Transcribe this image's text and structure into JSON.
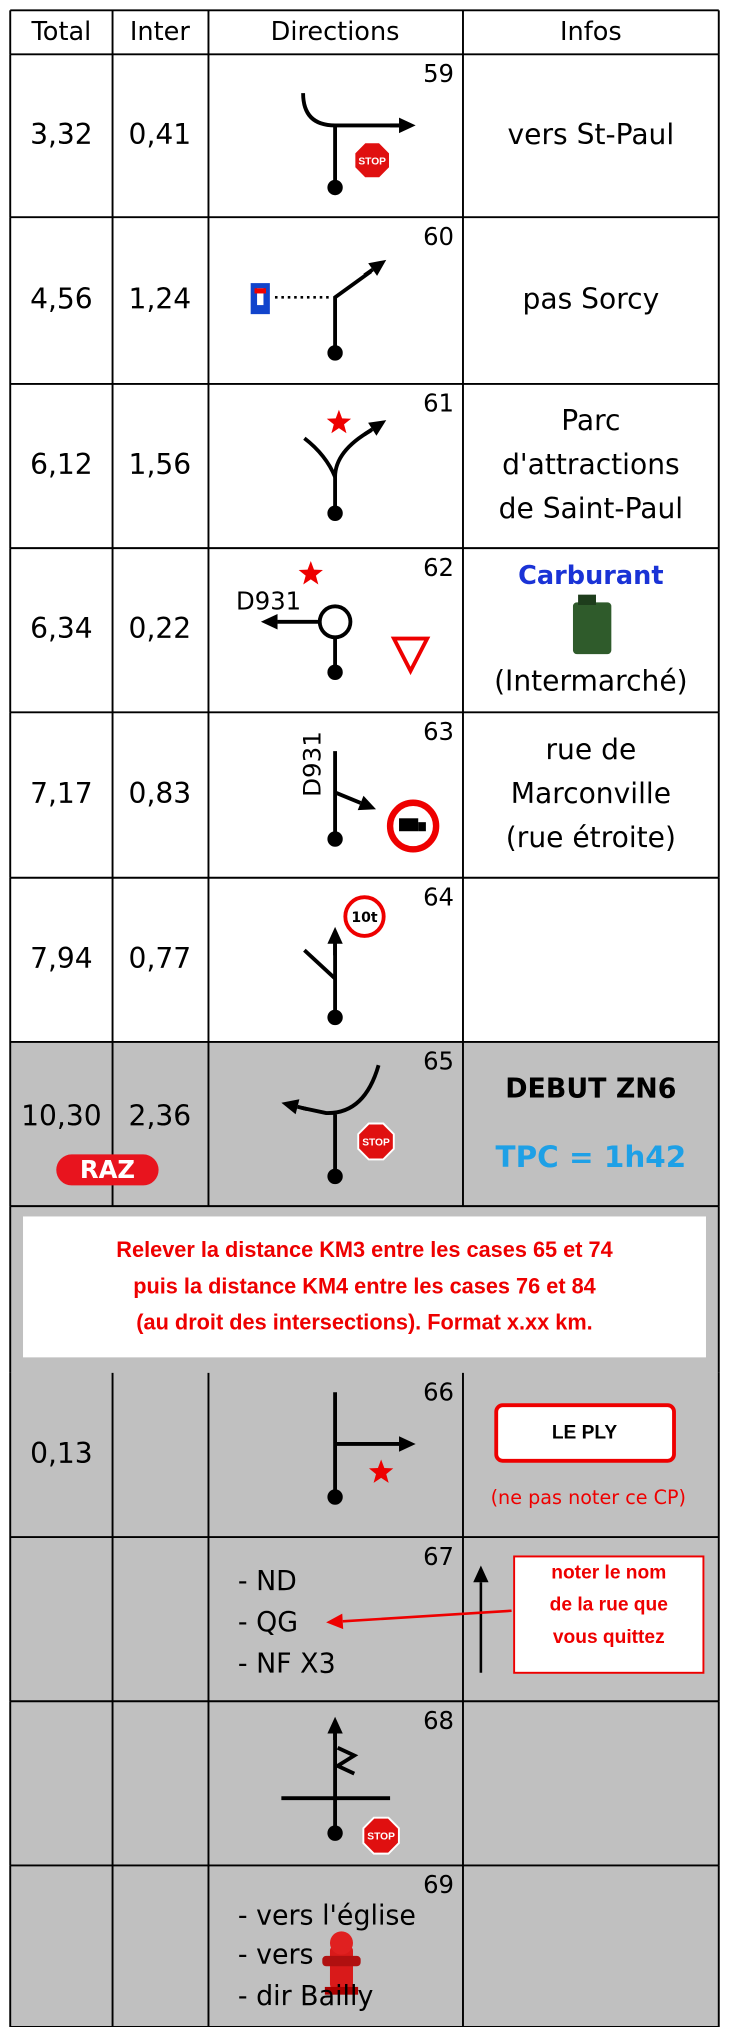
{
  "header": {
    "columns": [
      "Total",
      "Inter",
      "Directions",
      "Infos"
    ]
  },
  "stop_sign": "STOP",
  "rows": [
    {
      "number": "59",
      "total": "3,32",
      "inter": "0,41",
      "infos": [
        "vers St-Paul"
      ]
    },
    {
      "number": "60",
      "total": "4,56",
      "inter": "1,24",
      "infos": [
        "pas Sorcy"
      ]
    },
    {
      "number": "61",
      "total": "6,12",
      "inter": "1,56",
      "infos": [
        "Parc",
        "d'attractions",
        "de Saint-Paul"
      ]
    },
    {
      "number": "62",
      "total": "6,34",
      "inter": "0,22",
      "road": "D931",
      "infos": [
        "Carburant",
        "(Intermarché)"
      ]
    },
    {
      "number": "63",
      "total": "7,17",
      "inter": "0,83",
      "road": "D931",
      "infos": [
        "rue de",
        "Marconville",
        "(rue étroite)"
      ]
    },
    {
      "number": "64",
      "total": "7,94",
      "inter": "0,77",
      "sign": "10t",
      "infos": []
    },
    {
      "number": "65",
      "total": "10,30",
      "inter": "2,36",
      "badge": "RAZ",
      "infos": [
        "DEBUT ZN6",
        "TPC = 1h42"
      ]
    },
    {
      "number": "66",
      "total": "0,13",
      "infos": [
        "LE PLY",
        "(ne pas noter ce CP)"
      ]
    },
    {
      "number": "67",
      "directions": [
        "- ND",
        "- QG",
        "- NF X3"
      ],
      "infos": [
        "noter le nom",
        "de la rue que",
        "vous quittez"
      ]
    },
    {
      "number": "68"
    },
    {
      "number": "69",
      "directions": [
        "- vers l'église",
        "- vers",
        "- dir Bailly"
      ]
    }
  ],
  "banner": [
    "Relever la distance KM3 entre les cases 65 et 74",
    "puis la distance KM4 entre les cases 76 et 84",
    "(au droit des intersections). Format x.xx km."
  ]
}
